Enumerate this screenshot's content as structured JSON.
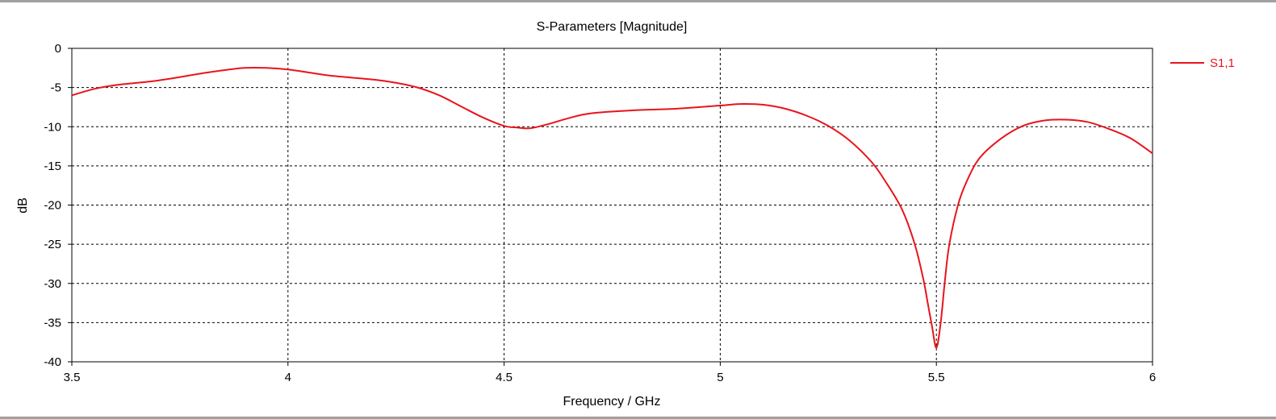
{
  "chart_data": {
    "type": "line",
    "title": "S-Parameters [Magnitude]",
    "xlabel": "Frequency / GHz",
    "ylabel": "dB",
    "xlim": [
      3.5,
      6
    ],
    "ylim": [
      -40,
      0
    ],
    "xticks": [
      "3.5",
      "4",
      "4.5",
      "5",
      "5.5",
      "6"
    ],
    "yticks": [
      "0",
      "-5",
      "-10",
      "-15",
      "-20",
      "-25",
      "-30",
      "-35",
      "-40"
    ],
    "grid": true,
    "legend_position": "right",
    "series": [
      {
        "name": "S1,1",
        "color": "#e8141c",
        "x": [
          3.5,
          3.55,
          3.6,
          3.7,
          3.8,
          3.85,
          3.9,
          3.95,
          4.0,
          4.05,
          4.1,
          4.2,
          4.25,
          4.3,
          4.35,
          4.4,
          4.45,
          4.5,
          4.53,
          4.56,
          4.6,
          4.65,
          4.7,
          4.8,
          4.9,
          5.0,
          5.05,
          5.1,
          5.15,
          5.2,
          5.25,
          5.3,
          5.35,
          5.38,
          5.42,
          5.45,
          5.47,
          5.48,
          5.49,
          5.5,
          5.51,
          5.52,
          5.53,
          5.55,
          5.57,
          5.6,
          5.65,
          5.7,
          5.75,
          5.8,
          5.85,
          5.9,
          5.95,
          6.0
        ],
        "y": [
          -6.0,
          -5.2,
          -4.7,
          -4.1,
          -3.2,
          -2.8,
          -2.5,
          -2.5,
          -2.7,
          -3.1,
          -3.5,
          -4.0,
          -4.4,
          -5.0,
          -6.0,
          -7.4,
          -8.8,
          -9.9,
          -10.1,
          -10.2,
          -9.7,
          -8.9,
          -8.3,
          -7.9,
          -7.7,
          -7.3,
          -7.1,
          -7.2,
          -7.7,
          -8.6,
          -9.9,
          -11.8,
          -14.5,
          -16.8,
          -20.5,
          -25.0,
          -29.5,
          -32.5,
          -35.5,
          -38.2,
          -35.0,
          -29.5,
          -25.0,
          -20.0,
          -17.0,
          -14.0,
          -11.5,
          -9.9,
          -9.2,
          -9.1,
          -9.4,
          -10.3,
          -11.5,
          -13.4
        ]
      }
    ]
  }
}
